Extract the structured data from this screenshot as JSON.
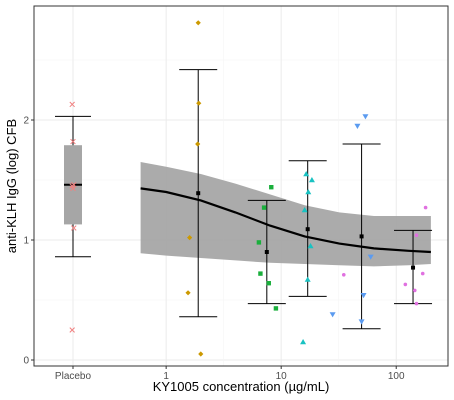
{
  "chart_data": {
    "type": "scatter",
    "title": "",
    "xlabel": "KY1005 concentration (µg/mL)",
    "ylabel": "anti-KLH IgG (log) CFB",
    "x_scale": "log10",
    "x_ticks": [
      {
        "value": 1,
        "label": "1"
      },
      {
        "value": 10,
        "label": "10"
      },
      {
        "value": 100,
        "label": "100"
      }
    ],
    "placebo_label": "Placebo",
    "y_ticks": [
      0,
      1,
      2
    ],
    "ylim": [
      -0.05,
      2.95
    ],
    "xlim": [
      0.3,
      250
    ],
    "grid": true,
    "placebo": {
      "points": [
        2.13,
        1.82,
        1.46,
        1.45,
        1.43,
        1.1,
        0.25
      ],
      "box": {
        "q1": 1.13,
        "median": 1.46,
        "q3": 1.79
      },
      "whisker": {
        "low": 0.86,
        "high": 2.03
      },
      "color": "#f08080"
    },
    "groups": [
      {
        "x": 1.9,
        "mean": 1.39,
        "ci_low": 0.36,
        "ci_high": 2.42,
        "color": "#cc9900",
        "marker": "diamond",
        "points": [
          {
            "x": 1.9,
            "y": 2.81
          },
          {
            "x": 1.92,
            "y": 2.14
          },
          {
            "x": 1.88,
            "y": 1.8
          },
          {
            "x": 1.6,
            "y": 1.02
          },
          {
            "x": 1.55,
            "y": 0.56
          },
          {
            "x": 2.0,
            "y": 0.05
          }
        ]
      },
      {
        "x": 7.5,
        "mean": 0.9,
        "ci_low": 0.47,
        "ci_high": 1.33,
        "color": "#1aaf3c",
        "marker": "square",
        "points": [
          {
            "x": 8.2,
            "y": 1.44
          },
          {
            "x": 7.1,
            "y": 1.27
          },
          {
            "x": 6.4,
            "y": 0.98
          },
          {
            "x": 6.6,
            "y": 0.72
          },
          {
            "x": 7.8,
            "y": 0.64
          },
          {
            "x": 9.0,
            "y": 0.43
          }
        ]
      },
      {
        "x": 17,
        "mean": 1.09,
        "ci_low": 0.53,
        "ci_high": 1.66,
        "color": "#19c2c2",
        "marker": "triangle",
        "points": [
          {
            "x": 16.5,
            "y": 1.55
          },
          {
            "x": 18.5,
            "y": 1.5
          },
          {
            "x": 17.2,
            "y": 1.4
          },
          {
            "x": 16.0,
            "y": 1.25
          },
          {
            "x": 18.0,
            "y": 0.95
          },
          {
            "x": 17.0,
            "y": 0.67
          },
          {
            "x": 15.5,
            "y": 0.15
          }
        ]
      },
      {
        "x": 50,
        "mean": 1.03,
        "ci_low": 0.26,
        "ci_high": 1.8,
        "color": "#5b9bf0",
        "marker": "triangle-down",
        "points": [
          {
            "x": 54,
            "y": 2.03
          },
          {
            "x": 46,
            "y": 1.95
          },
          {
            "x": 60,
            "y": 0.86
          },
          {
            "x": 52,
            "y": 0.54
          },
          {
            "x": 28,
            "y": 0.38
          },
          {
            "x": 50,
            "y": 0.32
          }
        ]
      },
      {
        "x": 140,
        "mean": 0.77,
        "ci_low": 0.47,
        "ci_high": 1.08,
        "color": "#e070e0",
        "marker": "circle",
        "points": [
          {
            "x": 180,
            "y": 1.27
          },
          {
            "x": 150,
            "y": 1.04
          },
          {
            "x": 35,
            "y": 0.71
          },
          {
            "x": 170,
            "y": 0.72
          },
          {
            "x": 120,
            "y": 0.63
          },
          {
            "x": 145,
            "y": 0.58
          },
          {
            "x": 150,
            "y": 0.47
          }
        ]
      }
    ],
    "fit_line": {
      "x": [
        0.6,
        1,
        2,
        4,
        8,
        16,
        32,
        64,
        128,
        200
      ],
      "y": [
        1.43,
        1.4,
        1.33,
        1.23,
        1.12,
        1.03,
        0.97,
        0.93,
        0.91,
        0.9
      ]
    },
    "fit_band": {
      "x": [
        0.6,
        1,
        2,
        4,
        8,
        16,
        32,
        64,
        128,
        200
      ],
      "low": [
        0.89,
        0.87,
        0.85,
        0.83,
        0.81,
        0.8,
        0.79,
        0.78,
        0.79,
        0.8
      ],
      "high": [
        1.65,
        1.61,
        1.55,
        1.47,
        1.38,
        1.29,
        1.23,
        1.2,
        1.2,
        1.2
      ]
    },
    "colors": {
      "panel_border": "#333333",
      "grid_major": "#ebebeb",
      "grid_minor": "#f5f5f5",
      "band": "#a6a6a6",
      "line": "#000000",
      "errorbar": "#000000",
      "box_fill": "#a6a6a6"
    }
  }
}
